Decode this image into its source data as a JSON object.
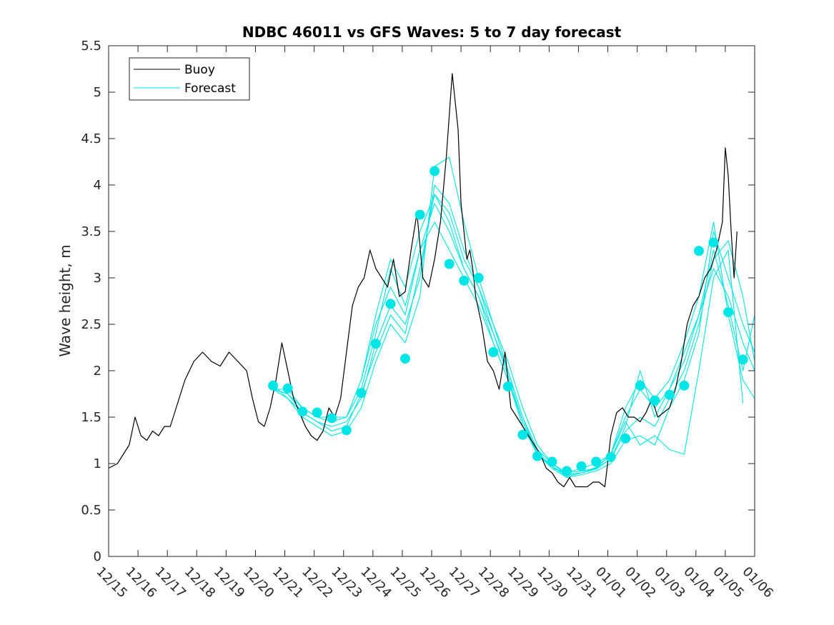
{
  "chart_data": {
    "type": "line",
    "title": "NDBC 46011 vs GFS Waves: 5 to 7 day forecast",
    "xlabel": "",
    "ylabel": "Wave height, m",
    "x_unit": "days since 12/15 00:00",
    "xlim": [
      0,
      22
    ],
    "ylim": [
      0,
      5.5
    ],
    "yticks": [
      0,
      0.5,
      1,
      1.5,
      2,
      2.5,
      3,
      3.5,
      4,
      4.5,
      5,
      5.5
    ],
    "ytick_labels": [
      "0",
      "0.5",
      "1",
      "1.5",
      "2",
      "2.5",
      "3",
      "3.5",
      "4",
      "4.5",
      "5",
      "5.5"
    ],
    "xtick_labels": [
      "12/15",
      "12/16",
      "12/17",
      "12/18",
      "12/19",
      "12/20",
      "12/21",
      "12/22",
      "12/23",
      "12/24",
      "12/25",
      "12/26",
      "12/27",
      "12/28",
      "12/29",
      "12/30",
      "12/31",
      "01/01",
      "01/02",
      "01/03",
      "01/04",
      "01/05",
      "01/06"
    ],
    "legend": {
      "location": "top-left",
      "entries": [
        "Buoy",
        "Forecast"
      ]
    },
    "colors": {
      "buoy": "#000000",
      "forecast": "#00e5e5",
      "axis": "#262626"
    },
    "grid": false,
    "series": [
      {
        "name": "Buoy",
        "x": [
          0,
          0.3,
          0.5,
          0.7,
          0.9,
          1.1,
          1.3,
          1.5,
          1.7,
          1.9,
          2.1,
          2.3,
          2.6,
          2.9,
          3.2,
          3.5,
          3.8,
          4.1,
          4.4,
          4.7,
          4.9,
          5.1,
          5.3,
          5.5,
          5.7,
          5.9,
          6.1,
          6.3,
          6.5,
          6.7,
          6.9,
          7.1,
          7.3,
          7.5,
          7.7,
          7.9,
          8.1,
          8.3,
          8.5,
          8.7,
          8.9,
          9.1,
          9.3,
          9.5,
          9.7,
          9.9,
          10.1,
          10.3,
          10.5,
          10.7,
          10.9,
          11.1,
          11.3,
          11.5,
          11.7,
          11.9,
          12.0,
          12.1,
          12.2,
          12.3,
          12.4,
          12.5,
          12.7,
          12.9,
          13.1,
          13.3,
          13.5,
          13.7,
          13.9,
          14.1,
          14.3,
          14.5,
          14.7,
          14.9,
          15.1,
          15.3,
          15.5,
          15.7,
          15.9,
          16.1,
          16.3,
          16.5,
          16.7,
          16.9,
          17.1,
          17.3,
          17.5,
          17.7,
          17.9,
          18.1,
          18.3,
          18.5,
          18.7,
          18.9,
          19.1,
          19.3,
          19.5,
          19.7,
          19.9,
          20.1,
          20.3,
          20.5,
          20.7,
          20.9,
          21.0,
          21.1,
          21.2,
          21.3,
          21.4
        ],
        "values": [
          0.95,
          1.0,
          1.1,
          1.2,
          1.5,
          1.3,
          1.25,
          1.35,
          1.3,
          1.4,
          1.4,
          1.6,
          1.9,
          2.1,
          2.2,
          2.1,
          2.05,
          2.2,
          2.1,
          2.0,
          1.7,
          1.45,
          1.4,
          1.6,
          1.9,
          2.3,
          2.0,
          1.7,
          1.55,
          1.4,
          1.3,
          1.25,
          1.35,
          1.6,
          1.5,
          1.7,
          2.2,
          2.7,
          2.9,
          3.0,
          3.3,
          3.1,
          3.0,
          2.9,
          3.2,
          2.8,
          2.85,
          3.3,
          3.7,
          3.0,
          2.9,
          3.2,
          3.6,
          4.3,
          5.2,
          4.6,
          3.8,
          3.5,
          3.2,
          3.3,
          3.1,
          2.8,
          2.5,
          2.1,
          2.0,
          1.8,
          2.2,
          1.6,
          1.5,
          1.4,
          1.3,
          1.2,
          1.1,
          0.95,
          0.9,
          0.8,
          0.75,
          0.85,
          0.75,
          0.75,
          0.75,
          0.8,
          0.8,
          0.75,
          1.3,
          1.55,
          1.6,
          1.5,
          1.5,
          1.45,
          1.55,
          1.7,
          1.5,
          1.55,
          1.6,
          1.8,
          2.1,
          2.5,
          2.7,
          2.8,
          3.0,
          3.1,
          3.3,
          3.6,
          4.4,
          4.1,
          3.5,
          3.0,
          3.5
        ]
      },
      {
        "name": "Forecast",
        "x": [
          5.6,
          6.1,
          6.6,
          7.1,
          7.6,
          8.1,
          8.6,
          9.1,
          9.6,
          10.1,
          10.6,
          11.1,
          11.6,
          12.1,
          12.6,
          13.1,
          13.6,
          14.1,
          14.6,
          15.1,
          15.6,
          16.1,
          16.6,
          17.1,
          17.6,
          18.1,
          18.6,
          19.1,
          19.6,
          20.1,
          20.6,
          21.1,
          21.6,
          22.0
        ],
        "values": [
          1.8,
          1.75,
          1.6,
          1.5,
          1.45,
          1.5,
          1.9,
          2.5,
          2.9,
          2.6,
          3.3,
          3.8,
          3.5,
          3.1,
          2.8,
          2.4,
          2.0,
          1.5,
          1.15,
          1.0,
          0.9,
          0.92,
          0.95,
          1.1,
          1.5,
          1.8,
          1.6,
          1.8,
          2.1,
          2.6,
          3.1,
          2.8,
          2.3,
          2.0
        ]
      },
      {
        "name": "Forecast",
        "x": [
          5.6,
          6.1,
          6.6,
          7.1,
          7.6,
          8.1,
          8.6,
          9.1,
          9.6,
          10.1,
          10.6,
          11.1,
          11.6,
          12.1,
          12.6,
          13.1,
          13.6,
          14.1,
          14.6,
          15.1,
          15.6,
          16.1,
          16.6,
          17.1,
          17.6,
          18.1,
          18.6,
          19.1,
          19.6,
          20.1,
          20.6,
          21.1,
          21.6,
          22.0
        ],
        "values": [
          1.85,
          1.7,
          1.55,
          1.45,
          1.4,
          1.45,
          1.7,
          2.3,
          2.7,
          2.5,
          3.0,
          4.0,
          3.8,
          3.3,
          2.9,
          2.5,
          2.1,
          1.6,
          1.2,
          1.0,
          0.88,
          0.9,
          0.95,
          1.05,
          1.35,
          1.5,
          1.4,
          1.7,
          2.0,
          2.5,
          3.2,
          3.4,
          2.8,
          2.1
        ]
      },
      {
        "name": "Forecast",
        "x": [
          5.6,
          6.1,
          6.6,
          7.1,
          7.6,
          8.1,
          8.6,
          9.1,
          9.6,
          10.1,
          10.6,
          11.1,
          11.6,
          12.1,
          12.6,
          13.1,
          13.6,
          14.1,
          14.6,
          15.1,
          15.6,
          16.1,
          16.6,
          17.1,
          17.6,
          18.1,
          18.6,
          19.1,
          19.6,
          20.1,
          20.6,
          21.1,
          21.6,
          22.0
        ],
        "values": [
          1.8,
          1.7,
          1.5,
          1.4,
          1.3,
          1.35,
          1.6,
          2.1,
          2.5,
          2.3,
          2.8,
          4.2,
          4.3,
          3.6,
          3.0,
          2.5,
          2.0,
          1.5,
          1.1,
          0.95,
          0.85,
          0.88,
          0.92,
          1.0,
          1.25,
          1.3,
          1.2,
          1.6,
          1.9,
          2.4,
          3.5,
          3.0,
          2.5,
          2.2
        ]
      },
      {
        "name": "Forecast",
        "x": [
          5.6,
          6.1,
          6.6,
          7.1,
          7.6,
          8.1,
          8.6,
          9.1,
          9.6,
          10.1,
          10.6,
          11.1,
          11.6,
          12.1,
          12.6,
          13.1,
          13.6,
          14.1,
          14.6,
          15.1,
          15.6,
          16.1,
          16.6,
          17.1,
          17.6,
          18.1,
          18.6,
          19.1,
          19.6,
          20.1,
          20.6,
          21.1,
          21.6,
          22.0
        ],
        "values": [
          1.8,
          1.8,
          1.6,
          1.5,
          1.5,
          1.5,
          1.8,
          2.4,
          3.1,
          2.7,
          3.3,
          3.6,
          3.3,
          3.0,
          2.7,
          2.3,
          1.9,
          1.4,
          1.1,
          0.95,
          0.9,
          0.95,
          1.0,
          1.1,
          1.6,
          1.9,
          1.7,
          1.9,
          2.3,
          2.8,
          3.6,
          2.6,
          1.9,
          1.7
        ]
      },
      {
        "name": "Forecast",
        "x": [
          5.6,
          6.1,
          6.6,
          7.1,
          7.6,
          8.1,
          8.6,
          9.1,
          9.6,
          10.1,
          10.6,
          11.1,
          11.6,
          12.1,
          12.6,
          13.1,
          13.6,
          14.1,
          14.6,
          15.1,
          15.6,
          16.1,
          16.6,
          17.1,
          17.6,
          18.1,
          18.6,
          19.1,
          19.6,
          20.1,
          20.6,
          21.1,
          21.6,
          22.0
        ],
        "values": [
          1.8,
          1.75,
          1.55,
          1.45,
          1.35,
          1.4,
          1.75,
          2.2,
          2.6,
          2.4,
          3.1,
          3.9,
          3.7,
          3.2,
          2.9,
          2.4,
          1.95,
          1.45,
          1.12,
          0.97,
          0.86,
          0.9,
          0.94,
          1.05,
          1.4,
          2.0,
          1.5,
          1.8,
          2.2,
          2.6,
          3.3,
          2.7,
          2.0,
          2.6
        ]
      },
      {
        "name": "Forecast",
        "x": [
          8.6,
          9.1,
          9.6,
          10.1,
          10.6,
          11.1,
          11.6,
          12.1,
          12.6,
          13.1,
          13.6,
          14.1,
          14.6,
          15.1,
          15.6,
          16.1,
          16.6,
          17.1,
          17.6,
          18.1,
          18.6,
          19.1,
          19.6,
          20.1,
          20.6,
          21.1,
          21.6
        ],
        "values": [
          1.9,
          2.6,
          3.2,
          2.9,
          3.5,
          3.9,
          3.6,
          3.1,
          2.8,
          2.3,
          1.9,
          1.45,
          1.1,
          0.97,
          0.88,
          0.9,
          0.96,
          1.1,
          1.45,
          1.2,
          1.3,
          1.15,
          1.1,
          2.0,
          3.0,
          3.3,
          1.65
        ]
      }
    ],
    "markers": {
      "name": "Forecast",
      "x": [
        5.6,
        6.1,
        6.6,
        7.1,
        7.6,
        8.1,
        8.6,
        9.1,
        9.6,
        10.1,
        10.6,
        11.1,
        11.6,
        12.1,
        12.6,
        13.1,
        13.6,
        14.1,
        14.6,
        15.1,
        15.6,
        16.1,
        16.6,
        17.1,
        17.6,
        18.1,
        18.6,
        19.1,
        19.6,
        20.1,
        20.6,
        21.1,
        21.6
      ],
      "values": [
        1.84,
        1.81,
        1.56,
        1.55,
        1.49,
        1.36,
        1.76,
        2.29,
        2.72,
        2.13,
        3.68,
        4.15,
        3.15,
        2.97,
        3.0,
        2.2,
        1.83,
        1.31,
        1.08,
        1.02,
        0.92,
        0.97,
        1.02,
        1.07,
        1.27,
        1.84,
        1.68,
        1.74,
        1.84,
        3.29,
        3.38,
        2.63,
        2.12
      ]
    }
  }
}
